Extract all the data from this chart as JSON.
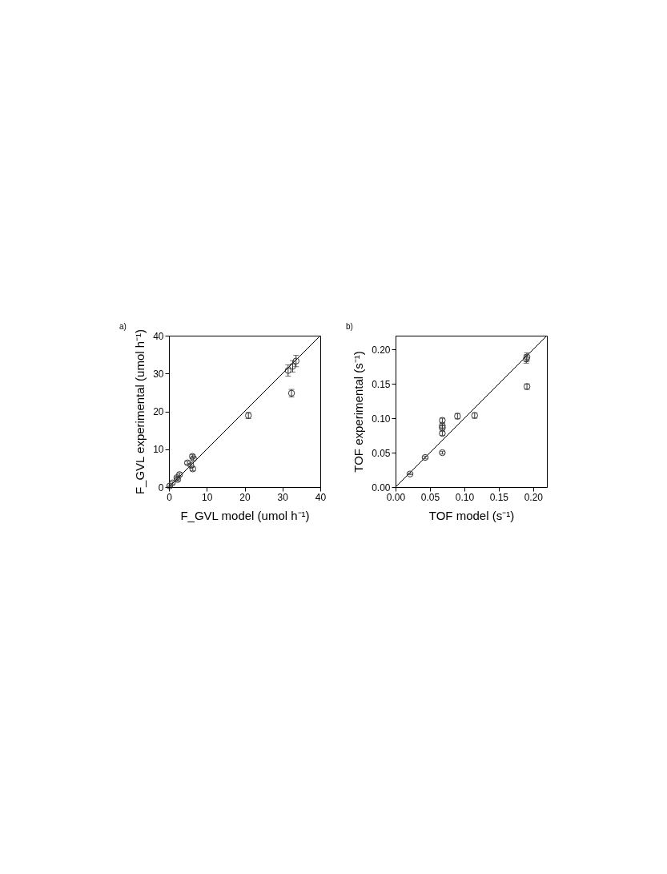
{
  "chart_data": [
    {
      "type": "scatter",
      "title": "a)",
      "xlabel": "F_GVL model (umol h⁻¹)",
      "ylabel": "F_GVL experimental (umol h⁻¹)",
      "xlim": [
        0,
        40
      ],
      "ylim": [
        0,
        40
      ],
      "xticks": [
        0,
        10,
        20,
        30,
        40
      ],
      "yticks": [
        0,
        10,
        20,
        30,
        40
      ],
      "grid": false,
      "series": [
        {
          "type": "line",
          "color": "#000000",
          "x": [
            0,
            40
          ],
          "values": [
            0,
            40
          ]
        },
        {
          "color": "#333333",
          "marker": "circle",
          "x": [
            0.2,
            0.9,
            2.1,
            2.3,
            2.8,
            4.9,
            5.8,
            6.3,
            6.2,
            6.5,
            21.0,
            31.5,
            32.7,
            33.6,
            32.4
          ],
          "values": [
            0.3,
            1.1,
            2.5,
            2.0,
            3.3,
            6.4,
            5.7,
            4.8,
            8.1,
            7.5,
            18.9,
            30.8,
            31.9,
            33.3,
            24.8
          ],
          "errors": [
            0.2,
            0.3,
            0.4,
            0.4,
            0.4,
            0.4,
            0.5,
            0.5,
            0.5,
            0.5,
            0.8,
            1.5,
            1.5,
            1.5,
            1.0
          ]
        }
      ]
    },
    {
      "type": "scatter",
      "title": "b)",
      "xlabel": "TOF model (s⁻¹)",
      "ylabel": "TOF experimental (s⁻¹)",
      "xlim": [
        0,
        0.22
      ],
      "ylim": [
        0,
        0.22
      ],
      "xticks": [
        {
          "value": 0,
          "label": "0.00"
        },
        0.05,
        {
          "value": 0.1,
          "label": "0.10"
        },
        0.15,
        {
          "value": 0.2,
          "label": "0.20"
        }
      ],
      "yticks": [
        {
          "value": 0,
          "label": "0.00"
        },
        0.05,
        {
          "value": 0.1,
          "label": "0.10"
        },
        0.15,
        {
          "value": 0.2,
          "label": "0.20"
        }
      ],
      "grid": false,
      "series": [
        {
          "type": "line",
          "color": "#000000",
          "x": [
            0,
            0.22
          ],
          "values": [
            0,
            0.22
          ]
        },
        {
          "color": "#333333",
          "marker": "circle",
          "x": [
            0.021,
            0.043,
            0.068,
            0.068,
            0.068,
            0.068,
            0.068,
            0.09,
            0.115,
            0.191,
            0.19,
            0.191
          ],
          "values": [
            0.019,
            0.043,
            0.05,
            0.078,
            0.086,
            0.089,
            0.097,
            0.103,
            0.104,
            0.146,
            0.186,
            0.189
          ],
          "errors": [
            0.001,
            0.002,
            0.002,
            0.003,
            0.003,
            0.003,
            0.003,
            0.004,
            0.004,
            0.004,
            0.006,
            0.006
          ]
        }
      ]
    }
  ]
}
